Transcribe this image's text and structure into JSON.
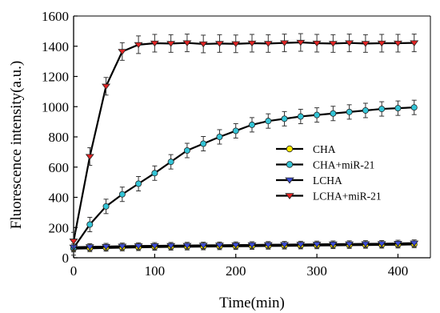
{
  "chart_data": {
    "type": "line",
    "title": "",
    "xlabel": "Time(min)",
    "ylabel": "Fluorescence intensity(a.u.)",
    "xlim": [
      0,
      440
    ],
    "ylim": [
      0,
      1600
    ],
    "xticks": [
      0,
      100,
      200,
      300,
      400
    ],
    "yticks": [
      0,
      200,
      400,
      600,
      800,
      1000,
      1200,
      1400,
      1600
    ],
    "grid": false,
    "legend_position": "center-right",
    "series": [
      {
        "name": "CHA",
        "color": "#ffeb00",
        "marker": "circle",
        "x": [
          0,
          20,
          40,
          60,
          80,
          100,
          120,
          140,
          160,
          180,
          200,
          220,
          240,
          260,
          280,
          300,
          320,
          340,
          360,
          380,
          400,
          420
        ],
        "y": [
          60,
          62,
          65,
          67,
          69,
          71,
          72,
          73,
          74,
          75,
          76,
          77,
          78,
          79,
          80,
          81,
          82,
          83,
          84,
          85,
          86,
          88
        ]
      },
      {
        "name": "CHA+miR-21",
        "color": "#33c4d6",
        "marker": "circle",
        "x": [
          0,
          20,
          40,
          60,
          80,
          100,
          120,
          140,
          160,
          180,
          200,
          220,
          240,
          260,
          280,
          300,
          320,
          340,
          360,
          380,
          400,
          420
        ],
        "y": [
          65,
          220,
          340,
          420,
          490,
          560,
          635,
          710,
          755,
          800,
          840,
          880,
          905,
          920,
          935,
          945,
          955,
          965,
          975,
          985,
          990,
          995
        ]
      },
      {
        "name": "LCHA",
        "color": "#3b4cd6",
        "marker": "triangle-down",
        "x": [
          0,
          20,
          40,
          60,
          80,
          100,
          120,
          140,
          160,
          180,
          200,
          220,
          240,
          260,
          280,
          300,
          320,
          340,
          360,
          380,
          400,
          420
        ],
        "y": [
          70,
          72,
          74,
          76,
          78,
          79,
          80,
          81,
          82,
          83,
          84,
          85,
          86,
          87,
          88,
          89,
          90,
          91,
          92,
          93,
          95,
          97
        ]
      },
      {
        "name": "LCHA+miR-21",
        "color": "#e02323",
        "marker": "triangle-down",
        "x": [
          0,
          20,
          40,
          60,
          80,
          100,
          120,
          140,
          160,
          180,
          200,
          220,
          240,
          260,
          280,
          300,
          320,
          340,
          360,
          380,
          400,
          420
        ],
        "y": [
          110,
          670,
          1135,
          1365,
          1410,
          1420,
          1418,
          1422,
          1415,
          1418,
          1416,
          1420,
          1418,
          1422,
          1425,
          1420,
          1418,
          1422,
          1418,
          1420,
          1420,
          1422
        ]
      }
    ]
  }
}
